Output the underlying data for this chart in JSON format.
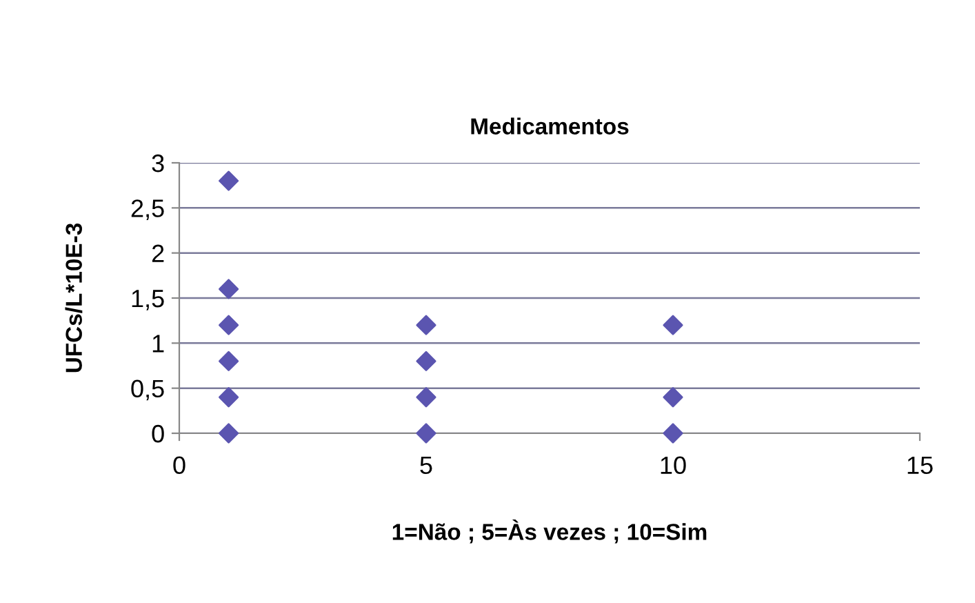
{
  "chart_data": {
    "type": "scatter",
    "title": "Medicamentos",
    "xlabel": "1=Não ; 5=Às vezes ; 10=Sim",
    "ylabel": "UFCs/L*10E-3",
    "x": [
      1,
      1,
      1,
      1,
      1,
      1,
      5,
      5,
      5,
      5,
      10,
      10,
      10
    ],
    "series": [
      {
        "color": "#5b55b0",
        "values": [
          0,
          0.4,
          0.8,
          1.2,
          1.6,
          2.8,
          0,
          0.4,
          0.8,
          1.2,
          0,
          0.4,
          1.2
        ]
      }
    ],
    "marker": "diamond",
    "xlim": [
      0,
      15
    ],
    "xticks": [
      0,
      5,
      10,
      15
    ],
    "ylim": [
      0,
      3
    ],
    "yticks": [
      0,
      {
        "value": 0.5,
        "label": "0,5"
      },
      1,
      {
        "value": 1.5,
        "label": "1,5"
      },
      2,
      {
        "value": 2.5,
        "label": "2,5"
      },
      3
    ],
    "grid": "y"
  }
}
